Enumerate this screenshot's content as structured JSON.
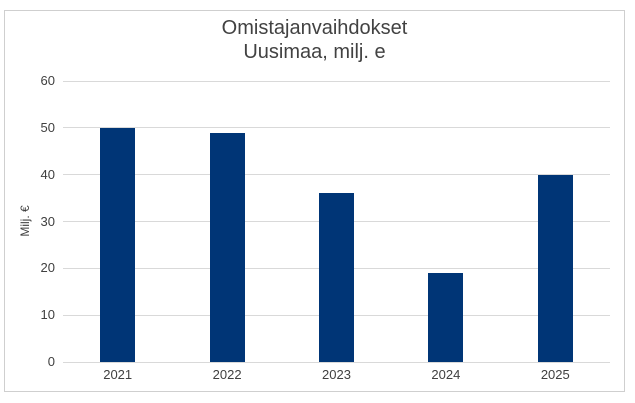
{
  "chart_data": {
    "type": "bar",
    "title": "Omistajanvaihdokset",
    "subtitle": "Uusimaa, milj. e",
    "categories": [
      "2021",
      "2022",
      "2023",
      "2024",
      "2025"
    ],
    "values": [
      50,
      49,
      36,
      19,
      40
    ],
    "xlabel": "",
    "ylabel": "Milj. €",
    "ylim": [
      0,
      60
    ],
    "yticks": [
      0,
      10,
      20,
      30,
      40,
      50,
      60
    ],
    "grid": true,
    "legend": "none",
    "bar_color": "#003576",
    "gridline_color": "#d9d9d9",
    "frame_border_color": "#cfcfcf",
    "text_color": "#404040"
  }
}
